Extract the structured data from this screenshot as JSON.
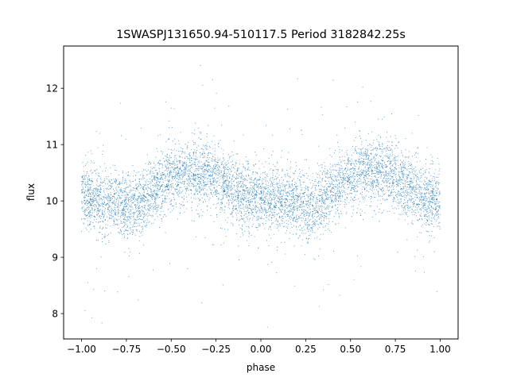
{
  "chart_data": {
    "type": "scatter",
    "title": "1SWASPJ131650.94-510117.5 Period 3182842.25s",
    "xlabel": "phase",
    "ylabel": "flux",
    "xlim": [
      -1.1,
      1.1
    ],
    "ylim": [
      7.55,
      12.75
    ],
    "xticks": [
      -1.0,
      -0.75,
      -0.5,
      -0.25,
      0.0,
      0.25,
      0.5,
      0.75,
      1.0
    ],
    "xtick_labels": [
      "−1.00",
      "−0.75",
      "−0.50",
      "−0.25",
      "0.00",
      "0.25",
      "0.50",
      "0.75",
      "1.00"
    ],
    "yticks": [
      8,
      9,
      10,
      11,
      12
    ],
    "ytick_labels": [
      "8",
      "9",
      "10",
      "11",
      "12"
    ],
    "grid": false,
    "legend": "none",
    "marker_color": "#1f77b4",
    "series": [
      {
        "description": "Phase-folded light curve, approximate binned profile (mean flux per phase bin)",
        "x": [
          -1.0,
          -0.9,
          -0.8,
          -0.7,
          -0.6,
          -0.5,
          -0.4,
          -0.3,
          -0.2,
          -0.1,
          0.0,
          0.1,
          0.2,
          0.3,
          0.4,
          0.5,
          0.6,
          0.7,
          0.8,
          0.9,
          1.0
        ],
        "y": [
          10.1,
          10.0,
          9.95,
          9.9,
          10.2,
          10.4,
          10.5,
          10.5,
          10.3,
          10.1,
          10.0,
          10.0,
          9.95,
          9.9,
          10.2,
          10.4,
          10.5,
          10.5,
          10.3,
          10.1,
          10.0
        ]
      }
    ]
  }
}
